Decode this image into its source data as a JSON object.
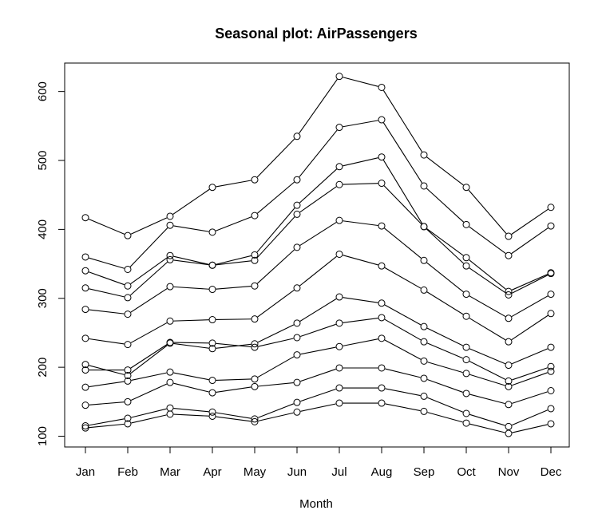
{
  "chart_data": {
    "type": "line",
    "title": "Seasonal plot: AirPassengers",
    "xlabel": "Month",
    "ylabel": "",
    "categories": [
      "Jan",
      "Feb",
      "Mar",
      "Apr",
      "May",
      "Jun",
      "Jul",
      "Aug",
      "Sep",
      "Oct",
      "Nov",
      "Dec"
    ],
    "yticks": [
      100,
      200,
      300,
      400,
      500,
      600
    ],
    "ylim": [
      100,
      622
    ],
    "grid": false,
    "legend": "none",
    "series": [
      {
        "values": [
          112,
          118,
          132,
          129,
          121,
          135,
          148,
          148,
          136,
          119,
          104,
          118
        ]
      },
      {
        "values": [
          115,
          126,
          141,
          135,
          125,
          149,
          170,
          170,
          158,
          133,
          114,
          140
        ]
      },
      {
        "values": [
          145,
          150,
          178,
          163,
          172,
          178,
          199,
          199,
          184,
          162,
          146,
          166
        ]
      },
      {
        "values": [
          171,
          180,
          193,
          181,
          183,
          218,
          230,
          242,
          209,
          191,
          172,
          194
        ]
      },
      {
        "values": [
          196,
          196,
          236,
          235,
          229,
          243,
          264,
          272,
          237,
          211,
          180,
          201
        ]
      },
      {
        "values": [
          204,
          188,
          235,
          227,
          234,
          264,
          302,
          293,
          259,
          229,
          203,
          229
        ]
      },
      {
        "values": [
          242,
          233,
          267,
          269,
          270,
          315,
          364,
          347,
          312,
          274,
          237,
          278
        ]
      },
      {
        "values": [
          284,
          277,
          317,
          313,
          318,
          374,
          413,
          405,
          355,
          306,
          271,
          306
        ]
      },
      {
        "values": [
          315,
          301,
          356,
          348,
          355,
          422,
          465,
          467,
          404,
          347,
          305,
          336
        ]
      },
      {
        "values": [
          340,
          318,
          362,
          348,
          363,
          435,
          491,
          505,
          404,
          359,
          310,
          337
        ]
      },
      {
        "values": [
          360,
          342,
          406,
          396,
          420,
          472,
          548,
          559,
          463,
          407,
          362,
          405
        ]
      },
      {
        "values": [
          417,
          391,
          419,
          461,
          472,
          535,
          622,
          606,
          508,
          461,
          390,
          432
        ]
      }
    ]
  }
}
